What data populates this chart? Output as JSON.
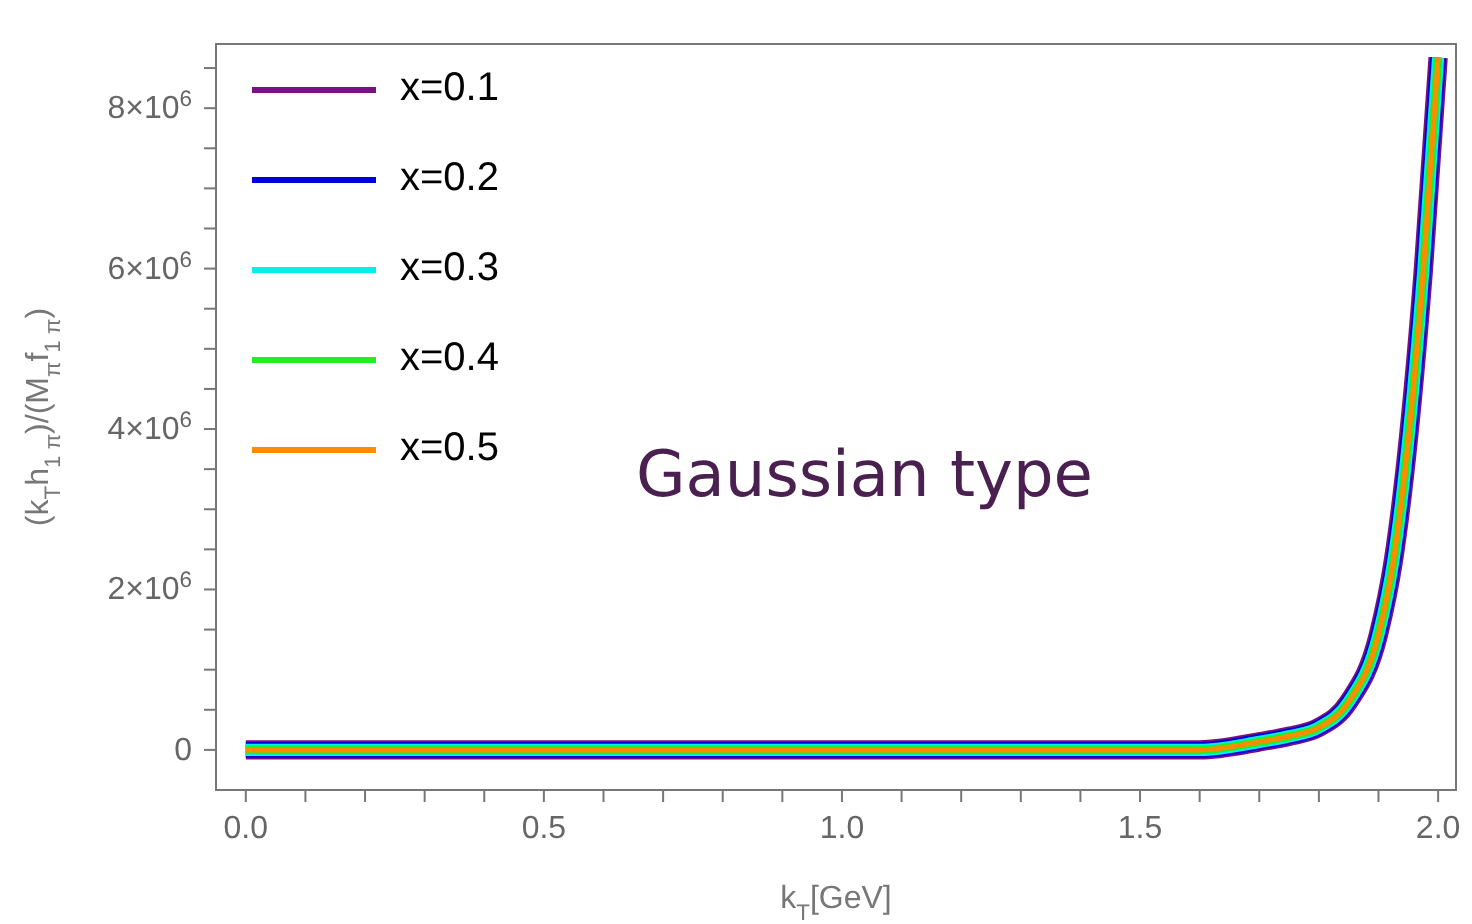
{
  "chart_data": {
    "type": "line",
    "xlabel": "k$_{T}$[GeV]",
    "ylabel": "(k$_{T}$h$_{1 π}$)/(M$_{π}$f$_{1 π}$)",
    "annotations": [
      "Gaussian type"
    ],
    "x": [
      0,
      0.5,
      1.0,
      1.4,
      1.5,
      1.6,
      1.7,
      1.75,
      1.8,
      1.85,
      1.9,
      1.925,
      1.95,
      1.975,
      2.0
    ],
    "series": [
      {
        "name": "x=0.1",
        "color": "#7a1180",
        "values": [
          0,
          0,
          0,
          0,
          0,
          0,
          100000.0,
          170000.0,
          280000.0,
          600000.0,
          1440000.0,
          2360000.0,
          3870000.0,
          5960000.0,
          8630000.0
        ]
      },
      {
        "name": "x=0.2",
        "color": "#0000dd",
        "values": [
          0,
          0,
          0,
          0,
          0,
          0,
          100000.0,
          170000.0,
          280000.0,
          600000.0,
          1440000.0,
          2360000.0,
          3870000.0,
          5960000.0,
          8630000.0
        ]
      },
      {
        "name": "x=0.3",
        "color": "#00f0f0",
        "values": [
          0,
          0,
          0,
          0,
          0,
          0,
          100000.0,
          170000.0,
          280000.0,
          600000.0,
          1440000.0,
          2360000.0,
          3870000.0,
          5960000.0,
          8630000.0
        ]
      },
      {
        "name": "x=0.4",
        "color": "#22ee22",
        "values": [
          0,
          0,
          0,
          0,
          0,
          0,
          100000.0,
          170000.0,
          280000.0,
          600000.0,
          1440000.0,
          2360000.0,
          3870000.0,
          5960000.0,
          8630000.0
        ]
      },
      {
        "name": "x=0.5",
        "color": "#ff8c00",
        "values": [
          0,
          0,
          0,
          0,
          0,
          0,
          100000.0,
          170000.0,
          280000.0,
          600000.0,
          1440000.0,
          2360000.0,
          3870000.0,
          5960000.0,
          8630000.0
        ]
      }
    ],
    "xlim": [
      -0.05,
      2.03
    ],
    "xticks": [
      {
        "value": 0,
        "label": "0.0"
      },
      {
        "value": 0.1,
        "label": null
      },
      {
        "value": 0.2,
        "label": null
      },
      {
        "value": 0.3,
        "label": null
      },
      {
        "value": 0.4,
        "label": null
      },
      {
        "value": 0.5,
        "label": "0.5"
      },
      {
        "value": 0.6,
        "label": null
      },
      {
        "value": 0.7,
        "label": null
      },
      {
        "value": 0.8,
        "label": null
      },
      {
        "value": 0.9,
        "label": null
      },
      {
        "value": 1.0,
        "label": "1.0"
      },
      {
        "value": 1.1,
        "label": null
      },
      {
        "value": 1.2,
        "label": null
      },
      {
        "value": 1.3,
        "label": null
      },
      {
        "value": 1.4,
        "label": null
      },
      {
        "value": 1.5,
        "label": "1.5"
      },
      {
        "value": 1.6,
        "label": null
      },
      {
        "value": 1.7,
        "label": null
      },
      {
        "value": 1.8,
        "label": null
      },
      {
        "value": 1.9,
        "label": null
      },
      {
        "value": 2.0,
        "label": "2.0"
      }
    ],
    "ylim": [
      -500000,
      8800000
    ],
    "yticks": [
      {
        "value": 0,
        "label": "0"
      },
      {
        "value": 500000,
        "label": null
      },
      {
        "value": 1000000,
        "label": null
      },
      {
        "value": 1500000,
        "label": null
      },
      {
        "value": 2000000,
        "label": "2×10$^{6}$"
      },
      {
        "value": 2500000,
        "label": null
      },
      {
        "value": 3000000,
        "label": null
      },
      {
        "value": 3500000,
        "label": null
      },
      {
        "value": 4000000,
        "label": "4×10$^{6}$"
      },
      {
        "value": 4500000,
        "label": null
      },
      {
        "value": 5000000,
        "label": null
      },
      {
        "value": 5500000,
        "label": null
      },
      {
        "value": 6000000,
        "label": "6×10$^{6}$"
      },
      {
        "value": 6500000,
        "label": null
      },
      {
        "value": 7000000,
        "label": null
      },
      {
        "value": 7500000,
        "label": null
      },
      {
        "value": 8000000,
        "label": "8×10$^{6}$"
      },
      {
        "value": 8500000,
        "label": null
      }
    ],
    "grid": false,
    "legend": "top left",
    "marker": "none",
    "line_style": "solid"
  }
}
